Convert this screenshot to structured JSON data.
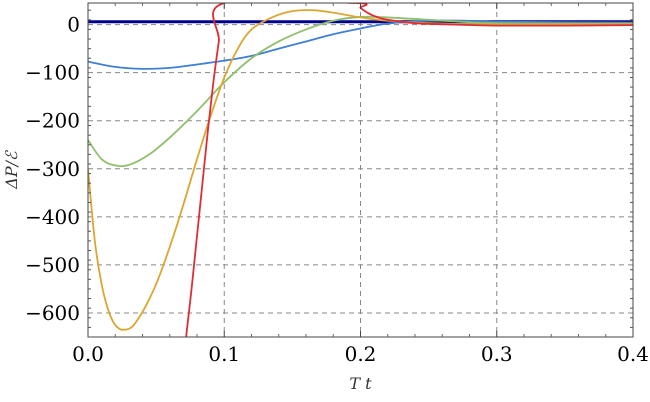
{
  "chart_data": {
    "type": "line",
    "xlabel": "T t",
    "ylabel": "ΔP/ℰ",
    "xlim": [
      0,
      0.4
    ],
    "ylim": [
      -650,
      45
    ],
    "x_ticks": [
      0,
      0.1,
      0.2,
      0.3,
      0.4
    ],
    "x_tick_labels": [
      "0.0",
      "0.1",
      "0.2",
      "0.3",
      "0.4"
    ],
    "y_ticks": [
      0,
      -100,
      -200,
      -300,
      -400,
      -500,
      -600
    ],
    "y_tick_labels": [
      "0",
      "−100",
      "−200",
      "−300",
      "−400",
      "−500",
      "−600"
    ],
    "grid": "dashed",
    "frame": true,
    "reference_line": {
      "y": 6,
      "color": "#00008b"
    },
    "series": [
      {
        "color": "#3f7fd4",
        "points": [
          [
            0,
            -77
          ],
          [
            0.02,
            -88
          ],
          [
            0.04,
            -92
          ],
          [
            0.06,
            -90
          ],
          [
            0.08,
            -83
          ],
          [
            0.1,
            -75
          ],
          [
            0.12,
            -65
          ],
          [
            0.14,
            -50
          ],
          [
            0.16,
            -35
          ],
          [
            0.18,
            -20
          ],
          [
            0.2,
            -8
          ],
          [
            0.22,
            2
          ],
          [
            0.25,
            8
          ],
          [
            0.28,
            8
          ],
          [
            0.3,
            6
          ],
          [
            0.35,
            5
          ],
          [
            0.4,
            4
          ]
        ]
      },
      {
        "color": "#8fbf6a",
        "points": [
          [
            0,
            -240
          ],
          [
            0.01,
            -280
          ],
          [
            0.02,
            -293
          ],
          [
            0.03,
            -292
          ],
          [
            0.045,
            -270
          ],
          [
            0.06,
            -235
          ],
          [
            0.08,
            -180
          ],
          [
            0.1,
            -120
          ],
          [
            0.12,
            -70
          ],
          [
            0.14,
            -35
          ],
          [
            0.16,
            -10
          ],
          [
            0.18,
            8
          ],
          [
            0.2,
            16
          ],
          [
            0.22,
            15
          ],
          [
            0.25,
            10
          ],
          [
            0.28,
            5
          ],
          [
            0.3,
            3
          ],
          [
            0.35,
            2
          ],
          [
            0.4,
            2
          ]
        ]
      },
      {
        "color": "#dba733",
        "points": [
          [
            0,
            -300
          ],
          [
            0.005,
            -450
          ],
          [
            0.01,
            -540
          ],
          [
            0.015,
            -595
          ],
          [
            0.02,
            -625
          ],
          [
            0.026,
            -635
          ],
          [
            0.035,
            -620
          ],
          [
            0.05,
            -540
          ],
          [
            0.065,
            -420
          ],
          [
            0.08,
            -280
          ],
          [
            0.09,
            -190
          ],
          [
            0.1,
            -110
          ],
          [
            0.11,
            -50
          ],
          [
            0.12,
            -10
          ],
          [
            0.135,
            15
          ],
          [
            0.15,
            28
          ],
          [
            0.165,
            30
          ],
          [
            0.18,
            25
          ],
          [
            0.2,
            15
          ],
          [
            0.22,
            8
          ],
          [
            0.25,
            3
          ],
          [
            0.3,
            0
          ],
          [
            0.35,
            1
          ],
          [
            0.4,
            1
          ]
        ]
      },
      {
        "color": "#dc2e35",
        "points": [
          [
            0.072,
            -650
          ],
          [
            0.076,
            -550
          ],
          [
            0.08,
            -440
          ],
          [
            0.084,
            -330
          ],
          [
            0.088,
            -220
          ],
          [
            0.092,
            -120
          ],
          [
            0.096,
            -35
          ],
          [
            0.1,
            45
          ],
          [
            0.1965,
            45
          ],
          [
            0.2,
            35
          ],
          [
            0.205,
            25
          ],
          [
            0.21,
            18
          ],
          [
            0.22,
            10
          ],
          [
            0.24,
            3
          ],
          [
            0.27,
            0
          ],
          [
            0.3,
            -2
          ],
          [
            0.35,
            -2
          ],
          [
            0.4,
            -1
          ]
        ]
      }
    ]
  }
}
